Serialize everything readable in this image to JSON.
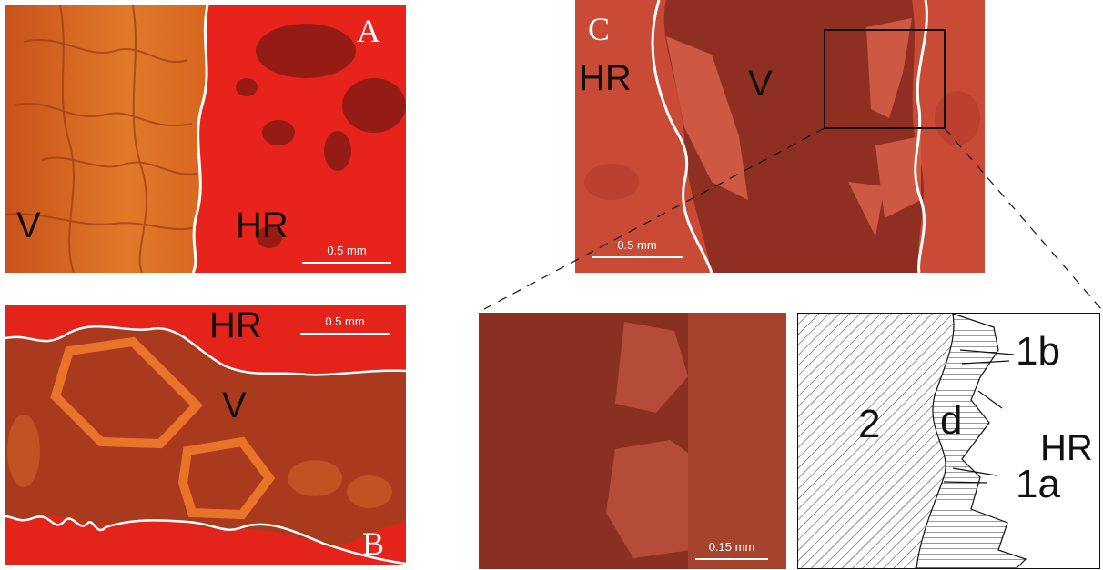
{
  "panels": {
    "A": {
      "letter": "A",
      "left_label": "V",
      "right_label": "HR",
      "scale": "0.5 mm"
    },
    "B": {
      "letter": "B",
      "top_label": "HR",
      "middle_label": "V",
      "scale": "0.5 mm"
    },
    "C": {
      "letter": "C",
      "left_label": "HR",
      "middle_label": "V",
      "scale": "0.5 mm"
    },
    "detail": {
      "scale": "0.15 mm"
    },
    "sketch": {
      "label_2": "2",
      "label_d": "d",
      "label_1b": "1b",
      "label_HR": "HR",
      "label_1a": "1a"
    }
  },
  "colors": {
    "vein_orange": "#d9651c",
    "host_red": "#e8241a",
    "dark_red": "#8a2418",
    "c_matrix": "#9a3324",
    "c_host": "#c94a35"
  }
}
